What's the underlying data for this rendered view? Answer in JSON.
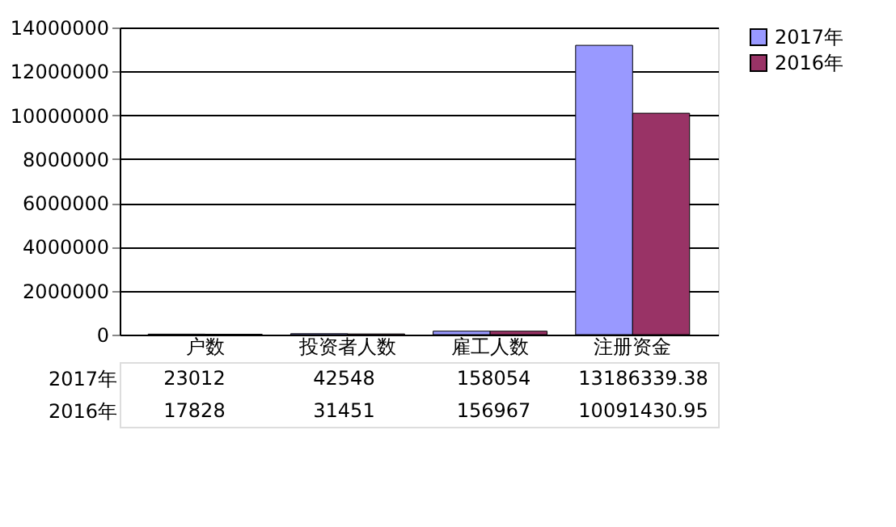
{
  "chart_data": {
    "type": "bar",
    "categories": [
      "户数",
      "投资者人数",
      "雇工人数",
      "注册资金"
    ],
    "series": [
      {
        "name": "2017年",
        "color": "#9999ff",
        "values": [
          23012,
          42548,
          158054,
          13186339.38
        ]
      },
      {
        "name": "2016年",
        "color": "#993366",
        "values": [
          17828,
          31451,
          156967,
          10091430.95
        ]
      }
    ],
    "ylim": [
      0,
      14000000
    ],
    "yticks": [
      0,
      2000000,
      4000000,
      6000000,
      8000000,
      10000000,
      12000000,
      14000000
    ],
    "grid": "y",
    "legend": "right",
    "data_labels": true
  }
}
